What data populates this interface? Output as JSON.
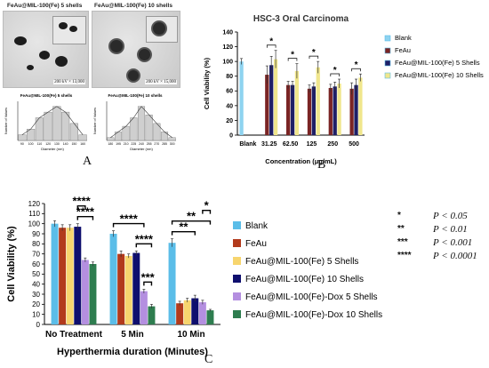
{
  "micrographs": [
    {
      "title": "FeAu@MIL-100(Fe) 5 shells",
      "scale": "200 kV × 13,000"
    },
    {
      "title": "FeAu@MIL-100(Fe) 10 shells",
      "scale": "200 kV × 15,000"
    }
  ],
  "histograms": [
    {
      "title": "FeAu@MIL-100(Fe) 5 shells",
      "xlabel": "Diameter (nm)",
      "ylabel": "Number of Values",
      "categories": [
        "90",
        "100",
        "110",
        "120",
        "130",
        "140",
        "150",
        "160"
      ],
      "values": [
        1,
        2,
        4,
        5,
        6,
        5,
        3,
        1
      ]
    },
    {
      "title": "FeAu@MIL-100(Fe) 10 shells",
      "xlabel": "Diameter (nm)",
      "ylabel": "Number of Values",
      "categories": [
        "180",
        "195",
        "210",
        "225",
        "240",
        "255",
        "270",
        "285",
        "300"
      ],
      "values": [
        1,
        3,
        5,
        8,
        12,
        9,
        6,
        3,
        1
      ]
    }
  ],
  "panel_letters": {
    "a": "A",
    "b": "B",
    "c": "C"
  },
  "stats_key": [
    {
      "symbol": "*",
      "text": "P < 0.05"
    },
    {
      "symbol": "**",
      "text": "P < 0.01"
    },
    {
      "symbol": "***",
      "text": "P < 0.001"
    },
    {
      "symbol": "****",
      "text": "P < 0.0001"
    }
  ],
  "chart_data": [
    {
      "type": "bar",
      "title": "HSC-3 Oral Carcinoma",
      "xlabel": "Concentration (μg/mL)",
      "ylabel": "Cell Viability (%)",
      "ylim": [
        0,
        140
      ],
      "yticks": [
        0,
        20,
        40,
        60,
        80,
        100,
        120,
        140
      ],
      "categories": [
        "Blank",
        "31.25",
        "62.50",
        "125",
        "250",
        "500"
      ],
      "legend_position": "right",
      "colors": [
        "#8ed3f0",
        "#7a2424",
        "#1f1f66",
        "#f0e68c"
      ],
      "series": [
        {
          "name": "Blank",
          "values": [
            100,
            null,
            null,
            null,
            null,
            null
          ],
          "errors": [
            4,
            null,
            null,
            null,
            null,
            null
          ]
        },
        {
          "name": "FeAu",
          "values": [
            null,
            82,
            68,
            63,
            64,
            63
          ],
          "errors": [
            null,
            12,
            5,
            5,
            5,
            8
          ]
        },
        {
          "name": "FeAu@MIL-100(Fe) 5 Shells",
          "values": [
            null,
            95,
            68,
            66,
            66,
            68
          ],
          "errors": [
            null,
            12,
            5,
            5,
            6,
            8
          ]
        },
        {
          "name": "FeAu@MIL-100(Fe) 10 Shells",
          "values": [
            null,
            103,
            87,
            92,
            70,
            78
          ],
          "errors": [
            null,
            12,
            10,
            8,
            6,
            5
          ]
        }
      ],
      "significance": [
        {
          "label": "*",
          "category": "31.25"
        },
        {
          "label": "*",
          "category": "62.50"
        },
        {
          "label": "*",
          "category": "125"
        },
        {
          "label": "*",
          "category": "250"
        },
        {
          "label": "*",
          "category": "500"
        }
      ]
    },
    {
      "type": "bar",
      "title": "",
      "xlabel": "Hyperthermia duration (Minutes)",
      "ylabel": "Cell Viability (%)",
      "ylim": [
        0,
        120
      ],
      "yticks": [
        0,
        10,
        20,
        30,
        40,
        50,
        60,
        70,
        80,
        90,
        100,
        110,
        120
      ],
      "categories": [
        "No Treatment",
        "5 Min",
        "10 Min"
      ],
      "legend_position": "right",
      "colors": [
        "#5bbde8",
        "#b23a1c",
        "#f7d56e",
        "#0f0f6e",
        "#b48fe0",
        "#2e7d4f"
      ],
      "series": [
        {
          "name": "Blank",
          "values": [
            100,
            90,
            81
          ],
          "errors": [
            3,
            3,
            4
          ]
        },
        {
          "name": "FeAu",
          "values": [
            96,
            70,
            21
          ],
          "errors": [
            3,
            3,
            2
          ]
        },
        {
          "name": "FeAu@MIL-100(Fe) 5 Shells",
          "values": [
            96,
            68,
            24
          ],
          "errors": [
            3,
            2,
            2
          ]
        },
        {
          "name": "FeAu@MIL-100(Fe) 10 Shells",
          "values": [
            97,
            71,
            26
          ],
          "errors": [
            3,
            2,
            3
          ]
        },
        {
          "name": "FeAu@MIL-100(Fe)-Dox 5 Shells",
          "values": [
            64,
            33,
            22
          ],
          "errors": [
            2,
            2,
            2
          ]
        },
        {
          "name": "FeAu@MIL-100(Fe)-Dox 10 Shells",
          "values": [
            60,
            18,
            14
          ],
          "errors": [
            2,
            2,
            1
          ]
        }
      ],
      "significance": [
        {
          "label": "****",
          "category": "No Treatment",
          "from_series": 3,
          "to_series": 5
        },
        {
          "label": "****",
          "category": "No Treatment",
          "from_series": 3,
          "to_series": 4
        },
        {
          "label": "***",
          "category": "5 Min",
          "from_series": 4,
          "to_series": 5
        },
        {
          "label": "****",
          "category": "5 Min",
          "from_series": 3,
          "to_series": 5
        },
        {
          "label": "****",
          "category": "5 Min",
          "from_series": 0,
          "to_series": 4
        },
        {
          "label": "**",
          "category": "10 Min",
          "from_series": 0,
          "to_series": 3
        },
        {
          "label": "**",
          "category": "10 Min",
          "from_series": 0,
          "to_series": 5
        },
        {
          "label": "*",
          "category": "10 Min",
          "from_series": 4,
          "to_series": 5
        }
      ]
    }
  ]
}
